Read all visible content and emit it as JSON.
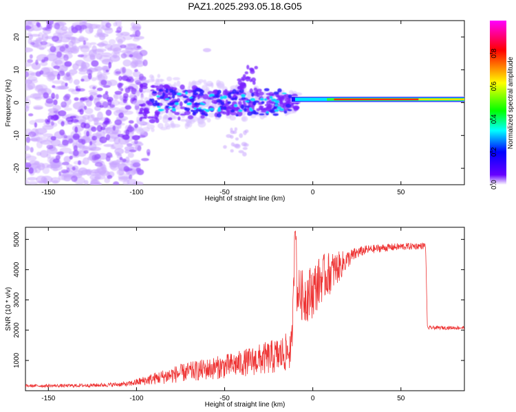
{
  "title": "PAZ1.2025.293.05.18.G05",
  "chart_data": [
    {
      "id": "spectrogram",
      "type": "heatmap",
      "xlabel": "Height of straight line (km)",
      "ylabel": "Frequency (Hz)",
      "xlim": [
        -163,
        86
      ],
      "ylim": [
        -25,
        25
      ],
      "xticks": [
        -150,
        -100,
        -50,
        0,
        50
      ],
      "yticks": [
        -20,
        -10,
        0,
        10,
        20
      ],
      "colorbar": {
        "label": "Normalized spectral amplitude",
        "ticks": [
          0.0,
          0.2,
          0.4,
          0.6,
          0.8
        ],
        "range": [
          0,
          1
        ],
        "colors": [
          "#ffffff",
          "#6600ff",
          "#0000ff",
          "#00ffff",
          "#00ff00",
          "#ffff00",
          "#ff0000",
          "#ff00ff"
        ]
      },
      "features": [
        {
          "name": "noise cloud",
          "x_range": [
            -163,
            -100
          ],
          "freq_range": [
            -25,
            25
          ],
          "amplitude": 0.1
        },
        {
          "name": "scattered signal",
          "x_range": [
            -100,
            -10
          ],
          "freq_range": [
            -8,
            8
          ],
          "amplitude": 0.2
        },
        {
          "name": "side blob",
          "x_range": [
            -62,
            -58
          ],
          "freq_range": [
            15,
            17
          ],
          "amplitude": 0.08
        },
        {
          "name": "stable carrier",
          "x_range": [
            -10,
            86
          ],
          "freq_hz": 1,
          "amplitude": 0.9
        }
      ]
    },
    {
      "id": "snr",
      "type": "line",
      "xlabel": "Height of straight line (km)",
      "ylabel": "SNR (10 * v/v)",
      "xlim": [
        -163,
        86
      ],
      "ylim": [
        0,
        5400
      ],
      "xticks": [
        -150,
        -100,
        -50,
        0,
        50
      ],
      "yticks": [
        1000,
        2000,
        3000,
        4000,
        5000
      ],
      "series_color": "#ee3333",
      "series": [
        {
          "name": "SNR",
          "x": [
            -163,
            -140,
            -120,
            -105,
            -100,
            -90,
            -80,
            -70,
            -60,
            -50,
            -40,
            -30,
            -20,
            -15,
            -12,
            -10,
            -9,
            -7,
            -5,
            0,
            5,
            10,
            15,
            20,
            25,
            30,
            40,
            50,
            60,
            64,
            65,
            70,
            80,
            86
          ],
          "y": [
            150,
            150,
            170,
            200,
            250,
            350,
            450,
            550,
            620,
            700,
            800,
            900,
            1000,
            1100,
            1200,
            4800,
            3300,
            3200,
            3100,
            3300,
            3700,
            3900,
            4100,
            4350,
            4550,
            4650,
            4720,
            4760,
            4780,
            4790,
            2080,
            2080,
            2080,
            2080
          ],
          "spread": [
            60,
            70,
            80,
            100,
            150,
            250,
            350,
            400,
            450,
            500,
            550,
            650,
            750,
            800,
            800,
            400,
            800,
            800,
            900,
            900,
            800,
            700,
            500,
            300,
            200,
            150,
            130,
            120,
            110,
            100,
            60,
            60,
            60,
            60
          ]
        }
      ]
    }
  ]
}
